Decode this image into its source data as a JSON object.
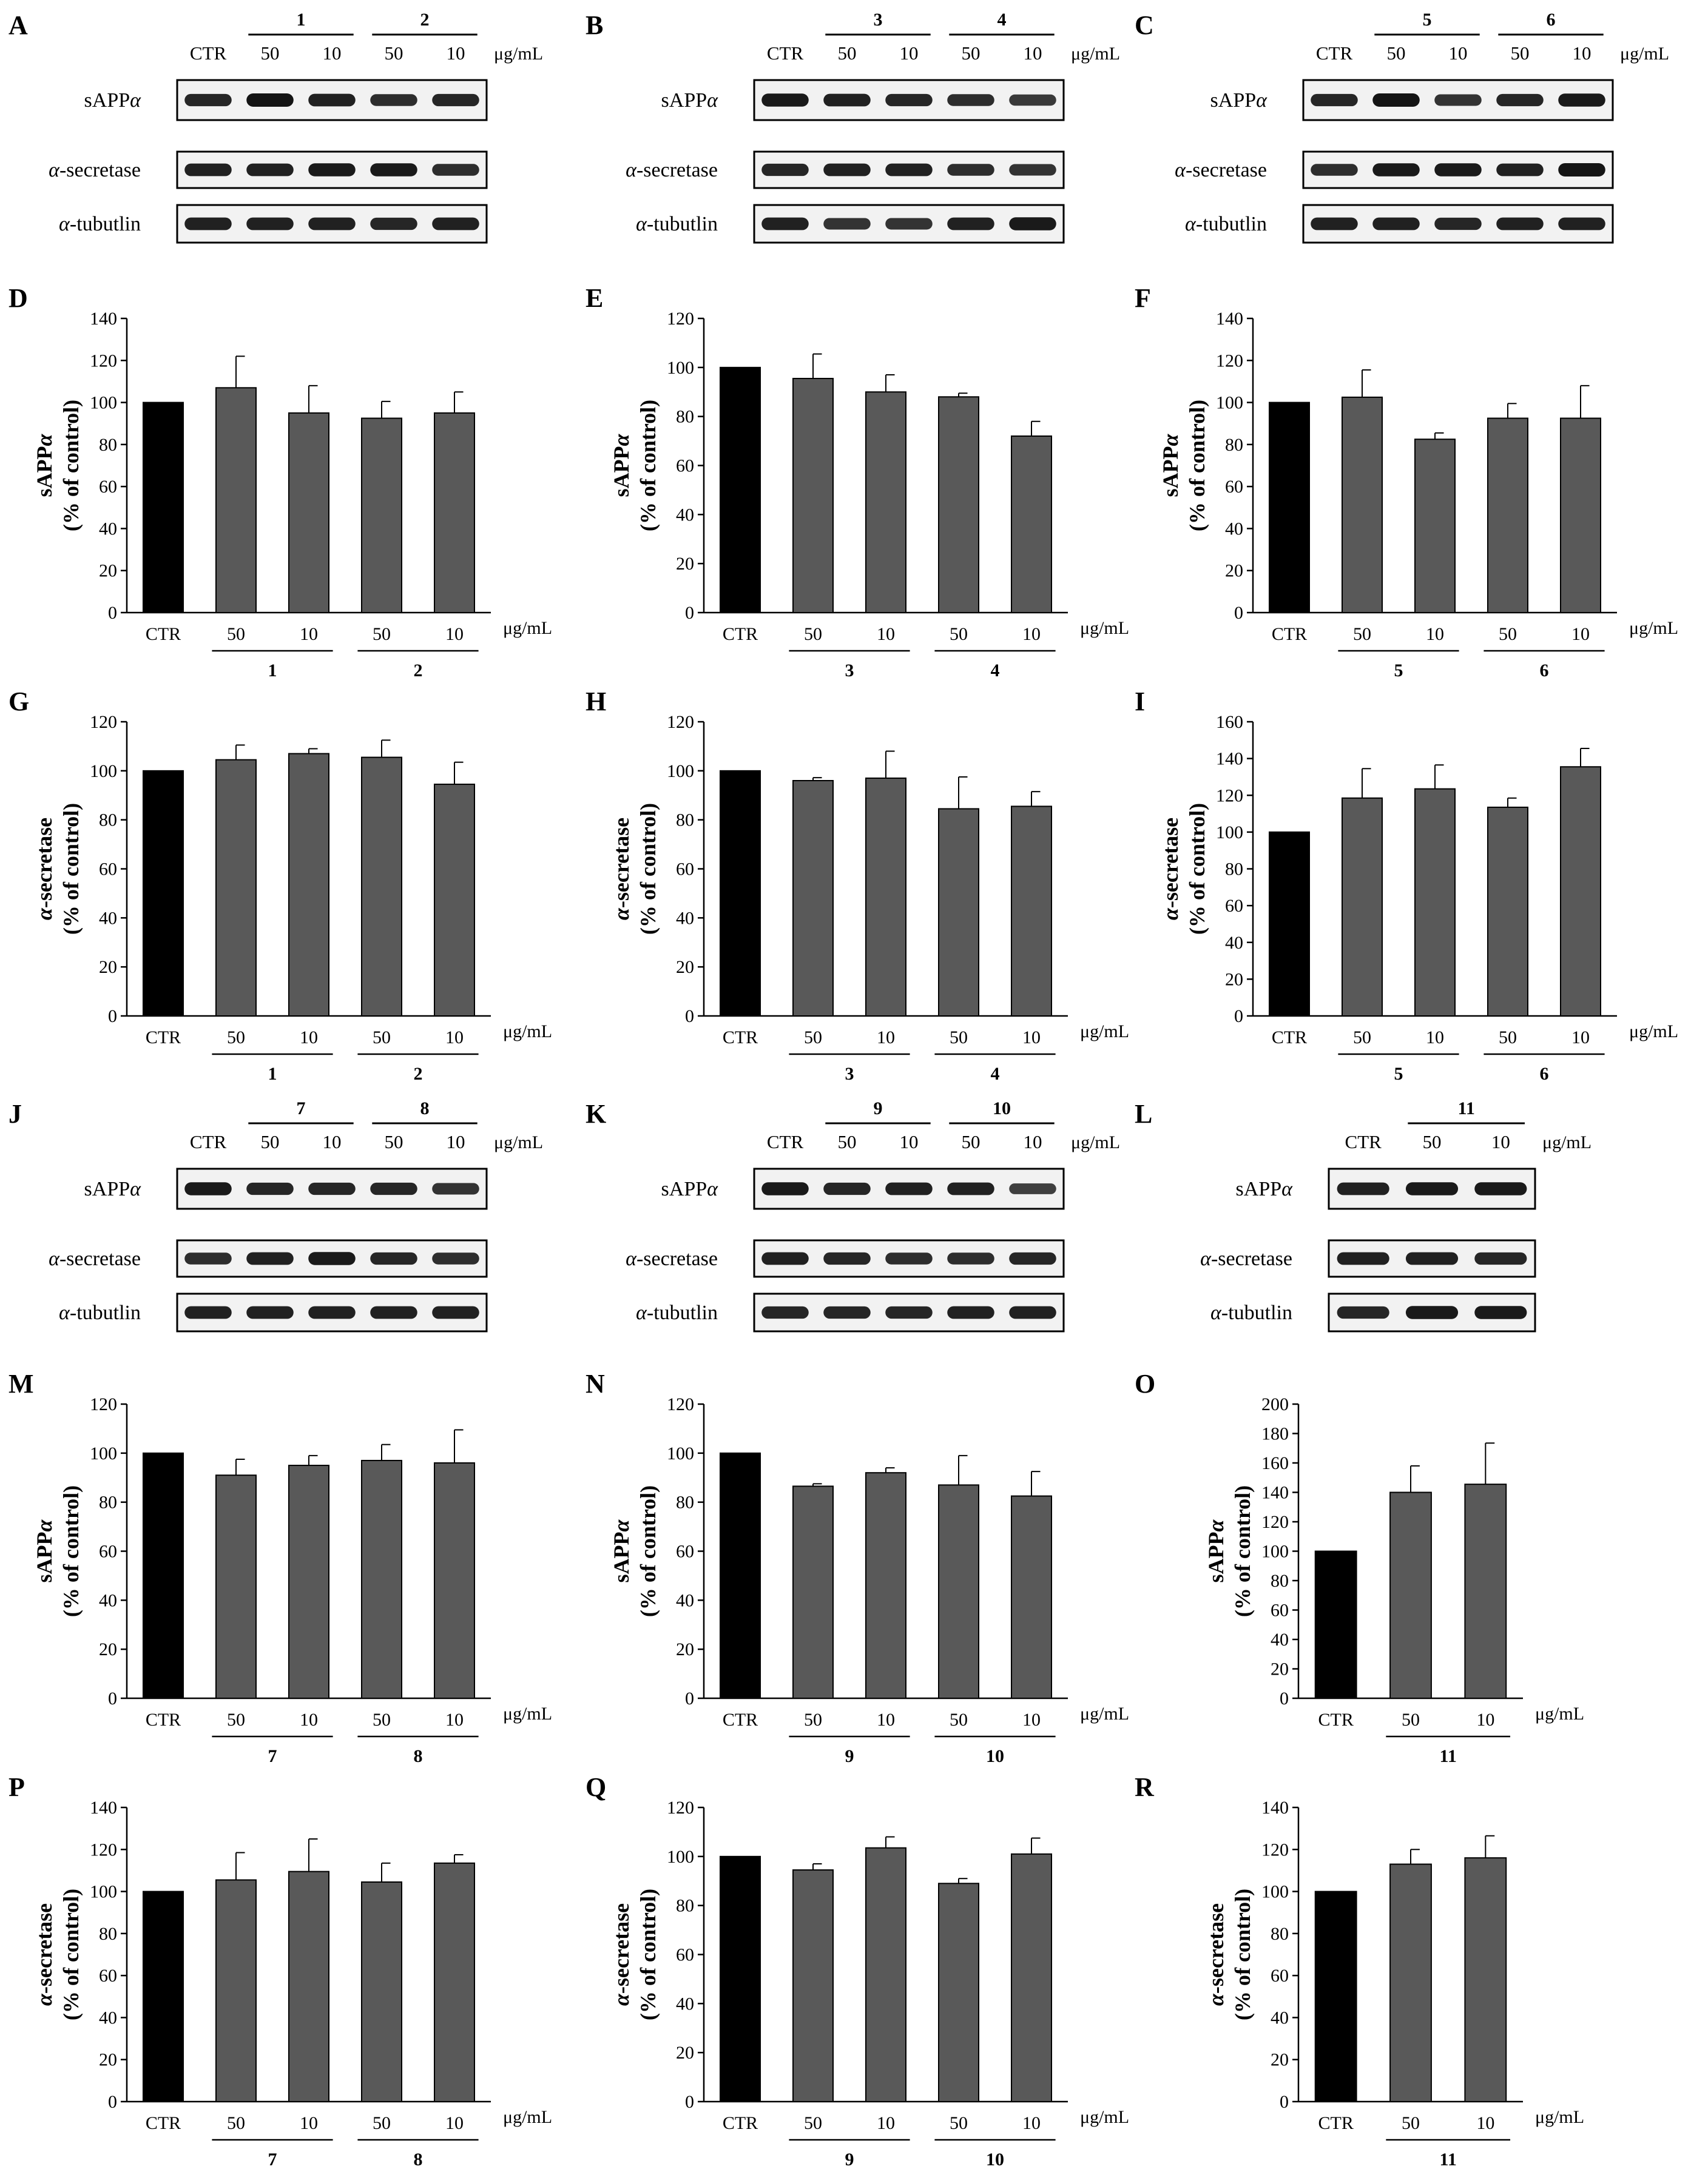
{
  "units": "μg/mL",
  "ctr_label": "CTR",
  "colors": {
    "control_bar": "#000000",
    "treatment_bar": "#595959",
    "band": "#141414"
  },
  "blots": [
    {
      "letter": "A",
      "lane_labels": [
        "CTR",
        "50",
        "10",
        "50",
        "10"
      ],
      "groups": [
        "1",
        "2"
      ],
      "bands": [
        {
          "name": "sAPPα",
          "intensity": [
            0.85,
            1.0,
            0.9,
            0.8,
            0.85
          ]
        },
        {
          "name": "α-secretase",
          "intensity": [
            0.9,
            0.9,
            0.95,
            0.95,
            0.8
          ]
        },
        {
          "name": "α-tubutlin",
          "intensity": [
            0.9,
            0.9,
            0.9,
            0.85,
            0.9
          ]
        }
      ]
    },
    {
      "letter": "B",
      "lane_labels": [
        "CTR",
        "50",
        "10",
        "50",
        "10"
      ],
      "groups": [
        "3",
        "4"
      ],
      "bands": [
        {
          "name": "sAPPα",
          "intensity": [
            0.95,
            0.9,
            0.85,
            0.8,
            0.7
          ]
        },
        {
          "name": "α-secretase",
          "intensity": [
            0.85,
            0.9,
            0.9,
            0.8,
            0.75
          ]
        },
        {
          "name": "α-tubutlin",
          "intensity": [
            0.9,
            0.75,
            0.75,
            0.9,
            0.95
          ]
        }
      ]
    },
    {
      "letter": "C",
      "lane_labels": [
        "CTR",
        "50",
        "10",
        "50",
        "10"
      ],
      "groups": [
        "5",
        "6"
      ],
      "bands": [
        {
          "name": "sAPPα",
          "intensity": [
            0.85,
            1.0,
            0.75,
            0.85,
            0.95
          ]
        },
        {
          "name": "α-secretase",
          "intensity": [
            0.8,
            0.95,
            0.95,
            0.9,
            1.0
          ]
        },
        {
          "name": "α-tubutlin",
          "intensity": [
            0.9,
            0.9,
            0.85,
            0.9,
            0.9
          ]
        }
      ]
    },
    {
      "letter": "J",
      "lane_labels": [
        "CTR",
        "50",
        "10",
        "50",
        "10"
      ],
      "groups": [
        "7",
        "8"
      ],
      "bands": [
        {
          "name": "sAPPα",
          "intensity": [
            0.95,
            0.85,
            0.85,
            0.85,
            0.75
          ]
        },
        {
          "name": "α-secretase",
          "intensity": [
            0.8,
            0.9,
            0.95,
            0.85,
            0.8
          ]
        },
        {
          "name": "α-tubutlin",
          "intensity": [
            0.9,
            0.9,
            0.9,
            0.9,
            0.9
          ]
        }
      ]
    },
    {
      "letter": "K",
      "lane_labels": [
        "CTR",
        "50",
        "10",
        "50",
        "10"
      ],
      "groups": [
        "9",
        "10"
      ],
      "bands": [
        {
          "name": "sAPPα",
          "intensity": [
            0.95,
            0.85,
            0.9,
            0.9,
            0.65
          ]
        },
        {
          "name": "α-secretase",
          "intensity": [
            0.9,
            0.85,
            0.8,
            0.8,
            0.85
          ]
        },
        {
          "name": "α-tubutlin",
          "intensity": [
            0.85,
            0.85,
            0.85,
            0.9,
            0.9
          ]
        }
      ]
    },
    {
      "letter": "L",
      "lane_labels": [
        "CTR",
        "50",
        "10"
      ],
      "groups": [
        "11"
      ],
      "bands": [
        {
          "name": "sAPPα",
          "intensity": [
            0.9,
            0.95,
            0.95
          ]
        },
        {
          "name": "α-secretase",
          "intensity": [
            0.9,
            0.9,
            0.85
          ]
        },
        {
          "name": "α-tubutlin",
          "intensity": [
            0.85,
            0.95,
            0.95
          ]
        }
      ]
    }
  ],
  "chart_data": [
    {
      "letter": "D",
      "type": "bar",
      "ylabel": [
        "sAPPα",
        "(% of control)"
      ],
      "ylim": [
        0,
        140
      ],
      "yticks": [
        0,
        20,
        40,
        60,
        80,
        100,
        120,
        140
      ],
      "categories": [
        "CTR",
        "50",
        "10",
        "50",
        "10"
      ],
      "groups": [
        "1",
        "2"
      ],
      "values": [
        100,
        107,
        95,
        92.5,
        95
      ],
      "errors": [
        0,
        15,
        13,
        8,
        10
      ]
    },
    {
      "letter": "E",
      "type": "bar",
      "ylabel": [
        "sAPPα",
        "(% of control)"
      ],
      "ylim": [
        0,
        120
      ],
      "yticks": [
        0,
        20,
        40,
        60,
        80,
        100,
        120
      ],
      "categories": [
        "CTR",
        "50",
        "10",
        "50",
        "10"
      ],
      "groups": [
        "3",
        "4"
      ],
      "values": [
        100,
        95.5,
        90,
        88,
        72
      ],
      "errors": [
        0,
        10,
        7,
        1.5,
        6
      ]
    },
    {
      "letter": "F",
      "type": "bar",
      "ylabel": [
        "sAPPα",
        "(% of control)"
      ],
      "ylim": [
        0,
        140
      ],
      "yticks": [
        0,
        20,
        40,
        60,
        80,
        100,
        120,
        140
      ],
      "categories": [
        "CTR",
        "50",
        "10",
        "50",
        "10"
      ],
      "groups": [
        "5",
        "6"
      ],
      "values": [
        100,
        102.5,
        82.5,
        92.5,
        92.5
      ],
      "errors": [
        0,
        13,
        3,
        7,
        15.5
      ]
    },
    {
      "letter": "G",
      "type": "bar",
      "ylabel": [
        "α-secretase",
        "(% of control)"
      ],
      "ylim": [
        0,
        120
      ],
      "yticks": [
        0,
        20,
        40,
        60,
        80,
        100,
        120
      ],
      "categories": [
        "CTR",
        "50",
        "10",
        "50",
        "10"
      ],
      "groups": [
        "1",
        "2"
      ],
      "values": [
        100,
        104.5,
        107,
        105.5,
        94.5
      ],
      "errors": [
        0,
        6,
        2,
        7,
        9
      ]
    },
    {
      "letter": "H",
      "type": "bar",
      "ylabel": [
        "α-secretase",
        "(% of control)"
      ],
      "ylim": [
        0,
        120
      ],
      "yticks": [
        0,
        20,
        40,
        60,
        80,
        100,
        120
      ],
      "categories": [
        "CTR",
        "50",
        "10",
        "50",
        "10"
      ],
      "groups": [
        "3",
        "4"
      ],
      "values": [
        100,
        96,
        97,
        84.5,
        85.5
      ],
      "errors": [
        0,
        1.2,
        11,
        13,
        6
      ]
    },
    {
      "letter": "I",
      "type": "bar",
      "ylabel": [
        "α-secretase",
        "(% of control)"
      ],
      "ylim": [
        0,
        160
      ],
      "yticks": [
        0,
        20,
        40,
        60,
        80,
        100,
        120,
        140,
        160
      ],
      "categories": [
        "CTR",
        "50",
        "10",
        "50",
        "10"
      ],
      "groups": [
        "5",
        "6"
      ],
      "values": [
        100,
        118.5,
        123.5,
        113.5,
        135.5
      ],
      "errors": [
        0,
        16,
        13,
        5,
        10
      ]
    },
    {
      "letter": "M",
      "type": "bar",
      "ylabel": [
        "sAPPα",
        "(% of control)"
      ],
      "ylim": [
        0,
        120
      ],
      "yticks": [
        0,
        20,
        40,
        60,
        80,
        100,
        120
      ],
      "categories": [
        "CTR",
        "50",
        "10",
        "50",
        "10"
      ],
      "groups": [
        "7",
        "8"
      ],
      "values": [
        100,
        91,
        95,
        97,
        96
      ],
      "errors": [
        0,
        6.5,
        4,
        6.5,
        13.5
      ]
    },
    {
      "letter": "N",
      "type": "bar",
      "ylabel": [
        "sAPPα",
        "(% of control)"
      ],
      "ylim": [
        0,
        120
      ],
      "yticks": [
        0,
        20,
        40,
        60,
        80,
        100,
        120
      ],
      "categories": [
        "CTR",
        "50",
        "10",
        "50",
        "10"
      ],
      "groups": [
        "9",
        "10"
      ],
      "values": [
        100,
        86.5,
        92,
        87,
        82.5
      ],
      "errors": [
        0,
        1,
        2,
        12,
        10
      ]
    },
    {
      "letter": "O",
      "type": "bar",
      "ylabel": [
        "sAPPα",
        "(% of control)"
      ],
      "ylim": [
        0,
        200
      ],
      "yticks": [
        0,
        20,
        40,
        60,
        80,
        100,
        120,
        140,
        160,
        180,
        200
      ],
      "categories": [
        "CTR",
        "50",
        "10"
      ],
      "groups": [
        "11"
      ],
      "values": [
        100,
        140,
        145.5
      ],
      "errors": [
        0,
        18,
        28
      ]
    },
    {
      "letter": "P",
      "type": "bar",
      "ylabel": [
        "α-secretase",
        "(% of control)"
      ],
      "ylim": [
        0,
        140
      ],
      "yticks": [
        0,
        20,
        40,
        60,
        80,
        100,
        120,
        140
      ],
      "categories": [
        "CTR",
        "50",
        "10",
        "50",
        "10"
      ],
      "groups": [
        "7",
        "8"
      ],
      "values": [
        100,
        105.5,
        109.5,
        104.5,
        113.5
      ],
      "errors": [
        0,
        13,
        15.5,
        9,
        4
      ]
    },
    {
      "letter": "Q",
      "type": "bar",
      "ylabel": [
        "α-secretase",
        "(% of control)"
      ],
      "ylim": [
        0,
        120
      ],
      "yticks": [
        0,
        20,
        40,
        60,
        80,
        100,
        120
      ],
      "categories": [
        "CTR",
        "50",
        "10",
        "50",
        "10"
      ],
      "groups": [
        "9",
        "10"
      ],
      "values": [
        100,
        94.5,
        103.5,
        89,
        101
      ],
      "errors": [
        0,
        2.5,
        4.5,
        2,
        6.5
      ]
    },
    {
      "letter": "R",
      "type": "bar",
      "ylabel": [
        "α-secretase",
        "(% of control)"
      ],
      "ylim": [
        0,
        140
      ],
      "yticks": [
        0,
        20,
        40,
        60,
        80,
        100,
        120,
        140
      ],
      "categories": [
        "CTR",
        "50",
        "10"
      ],
      "groups": [
        "11"
      ],
      "values": [
        100,
        113,
        116
      ],
      "errors": [
        0,
        7,
        10.5
      ]
    }
  ]
}
